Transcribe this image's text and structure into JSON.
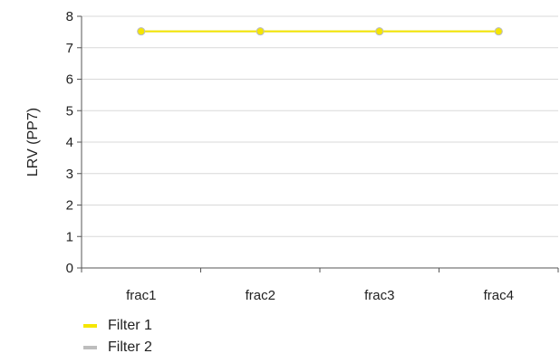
{
  "chart_data": {
    "type": "line",
    "categories": [
      "frac1",
      "frac2",
      "frac3",
      "frac4"
    ],
    "ylabel": "LRV (PP7)",
    "xlabel": "",
    "ylim": [
      0,
      8
    ],
    "yticks": [
      "0",
      "1",
      "2",
      "3",
      "4",
      "5",
      "6",
      "7",
      "8"
    ],
    "grid": true,
    "legend_position": "bottom-left",
    "series": [
      {
        "name": "Filter 1",
        "values": [
          7.52,
          7.52,
          7.52,
          7.52
        ],
        "color": "#f5e600"
      },
      {
        "name": "Filter 2",
        "values": [
          7.52,
          7.52,
          7.52,
          7.52
        ],
        "color": "#bdbdbd"
      }
    ]
  }
}
